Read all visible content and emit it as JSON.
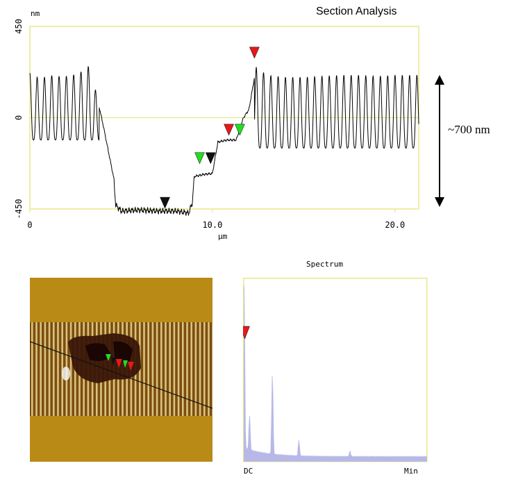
{
  "header": {
    "title": "Section Analysis"
  },
  "annotation": {
    "height_label": "~700 nm"
  },
  "spectrum": {
    "title": "Spectrum",
    "left_label": "DC",
    "right_label": "Min"
  },
  "colors": {
    "frame": "#e8e88a",
    "trace": "#000000",
    "marker_red": "#e41a1a",
    "marker_green": "#22dd22",
    "marker_black": "#111111",
    "spectrum_fill": "#b7b8e8",
    "afm_bg": "#b98a16"
  },
  "chart_data": [
    {
      "type": "line",
      "title": "Section Analysis",
      "xlabel": "µm",
      "ylabel": "nm",
      "xlim": [
        0,
        21.3
      ],
      "ylim": [
        -450,
        450
      ],
      "x_ticks": [
        0,
        10.0,
        20.0
      ],
      "x_tick_labels": [
        "0",
        "10.0",
        "20.0"
      ],
      "y_ticks": [
        450,
        0,
        -450
      ],
      "y_tick_labels": [
        "450",
        "0",
        "-450"
      ],
      "zero_line": true,
      "series": [
        {
          "profile": [
            [
              0.0,
              220
            ],
            [
              0.3,
              200
            ],
            [
              0.9,
              200
            ],
            [
              1.1,
              210
            ],
            [
              1.4,
              205
            ],
            [
              2.2,
              205
            ],
            [
              2.9,
              230
            ],
            [
              3.3,
              260
            ],
            [
              4.0,
              -30
            ],
            [
              4.6,
              -300
            ],
            [
              4.7,
              -430
            ],
            [
              5.0,
              -460
            ],
            [
              6.0,
              -455
            ],
            [
              7.0,
              -460
            ],
            [
              8.0,
              -460
            ],
            [
              8.7,
              -470
            ],
            [
              8.9,
              -420
            ],
            [
              9.0,
              -290
            ],
            [
              9.5,
              -280
            ],
            [
              10.0,
              -275
            ],
            [
              10.3,
              -120
            ],
            [
              10.8,
              -110
            ],
            [
              11.3,
              -110
            ],
            [
              11.7,
              0
            ],
            [
              12.0,
              40
            ],
            [
              12.4,
              250
            ],
            [
              13.0,
              210
            ],
            [
              14.0,
              200
            ],
            [
              15.0,
              200
            ],
            [
              16.0,
              205
            ],
            [
              17.0,
              210
            ],
            [
              18.0,
              210
            ],
            [
              19.0,
              205
            ],
            [
              20.0,
              210
            ],
            [
              21.3,
              210
            ]
          ]
        }
      ],
      "markers": [
        {
          "x": 7.4,
          "y": -440,
          "color": "black"
        },
        {
          "x": 9.3,
          "y": -220,
          "color": "green"
        },
        {
          "x": 9.9,
          "y": -220,
          "color": "black"
        },
        {
          "x": 10.9,
          "y": -80,
          "color": "red"
        },
        {
          "x": 11.5,
          "y": -80,
          "color": "green"
        },
        {
          "x": 12.3,
          "y": 300,
          "color": "red"
        }
      ]
    },
    {
      "type": "area",
      "title": "Spectrum",
      "xlabel": "",
      "ylabel": "",
      "x_tick_labels": [
        "DC",
        "Min"
      ],
      "peaks": [
        {
          "position": 0.0,
          "value": 1.0
        },
        {
          "position": 0.03,
          "value": 0.2
        },
        {
          "position": 0.155,
          "value": 0.47
        },
        {
          "position": 0.3,
          "value": 0.09
        },
        {
          "position": 0.58,
          "value": 0.03
        }
      ],
      "markers": [
        {
          "position": 0.0,
          "color": "red"
        }
      ]
    }
  ]
}
